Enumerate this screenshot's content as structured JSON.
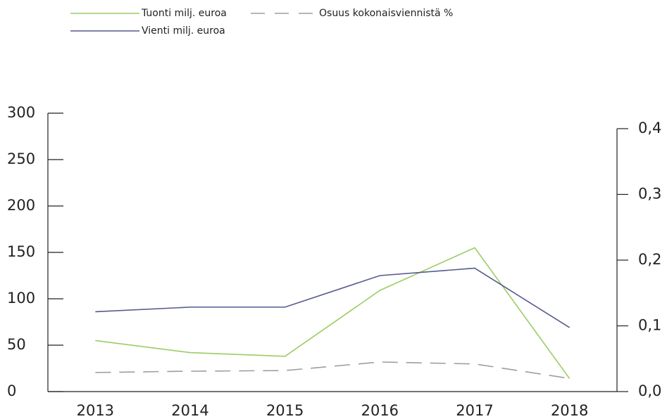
{
  "chart_data": {
    "type": "line",
    "categories": [
      "2013",
      "2014",
      "2015",
      "2016",
      "2017",
      "2018"
    ],
    "series": [
      {
        "name": "Tuonti milj. euroa",
        "color": "#9ccc65",
        "style": "solid",
        "values": [
          55,
          42,
          38,
          109,
          155,
          14
        ]
      },
      {
        "name": "Vienti milj. euroa",
        "color": "#55598f",
        "style": "solid",
        "values": [
          86,
          91,
          91,
          125,
          133,
          69
        ]
      },
      {
        "name": "Osuus kokonaisviennistä %",
        "color": "#9e9e9e",
        "style": "dashed",
        "axis": "y2",
        "values": [
          0.029,
          0.031,
          0.032,
          0.045,
          0.042,
          0.02
        ]
      }
    ],
    "ylim": [
      0,
      300
    ],
    "yticks": [
      0,
      50,
      100,
      150,
      200,
      250,
      300
    ],
    "y2lim": [
      0,
      0.4
    ],
    "y2ticks": [
      {
        "value": 0,
        "label": "0,0"
      },
      {
        "value": 0.1,
        "label": "0,1"
      },
      {
        "value": 0.2,
        "label": "0,2"
      },
      {
        "value": 0.3,
        "label": "0,3"
      },
      {
        "value": 0.4,
        "label": "0,4"
      }
    ],
    "legend": "top-left"
  }
}
